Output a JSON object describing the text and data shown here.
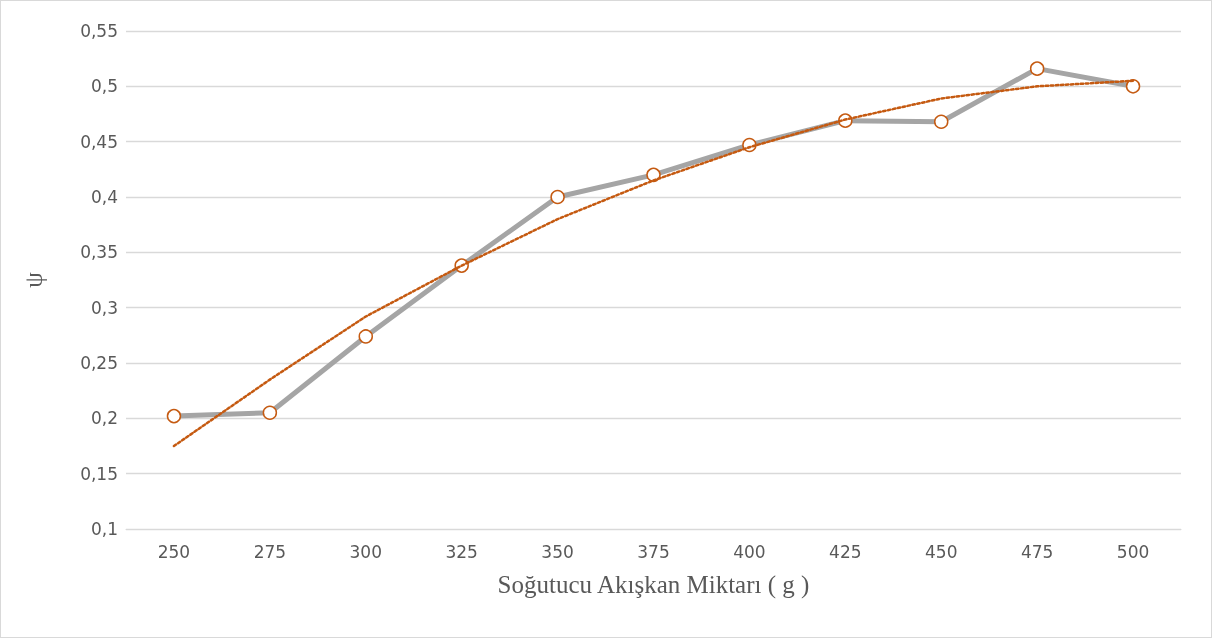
{
  "chart_data": {
    "type": "line",
    "xlabel": "Soğutucu Akışkan Miktarı ( g )",
    "ylabel": "ψ",
    "categories": [
      "250",
      "275",
      "300",
      "325",
      "350",
      "375",
      "400",
      "425",
      "450",
      "475",
      "500"
    ],
    "series": [
      {
        "color": "#a5a5a5",
        "colors": [
          "#c55a11",
          "#c55a11",
          "#c55a11",
          "#c55a11",
          "#c55a11",
          "#c55a11",
          "#c55a11",
          "#c55a11",
          "#c55a11",
          "#c55a11",
          "#c55a11"
        ],
        "marker": "circle",
        "line_style": "solid",
        "values": [
          0.202,
          0.205,
          0.274,
          0.338,
          0.4,
          0.42,
          0.447,
          0.469,
          0.468,
          0.516,
          0.5
        ]
      },
      {
        "color": "#c55a11",
        "marker": "none",
        "line_style": "dotted",
        "values": [
          0.175,
          0.235,
          0.292,
          0.338,
          0.38,
          0.415,
          0.445,
          0.47,
          0.489,
          0.5,
          0.505
        ]
      }
    ],
    "ylim": [
      0.1,
      0.55
    ],
    "yticks": [
      {
        "value": 0.1,
        "label": "0,1"
      },
      {
        "value": 0.15,
        "label": "0,15"
      },
      {
        "value": 0.2,
        "label": "0,2"
      },
      {
        "value": 0.25,
        "label": "0,25"
      },
      {
        "value": 0.3,
        "label": "0,3"
      },
      {
        "value": 0.35,
        "label": "0,35"
      },
      {
        "value": 0.4,
        "label": "0,4"
      },
      {
        "value": 0.45,
        "label": "0,45"
      },
      {
        "value": 0.5,
        "label": "0,5"
      },
      {
        "value": 0.55,
        "label": "0,55"
      }
    ],
    "grid": "y"
  }
}
